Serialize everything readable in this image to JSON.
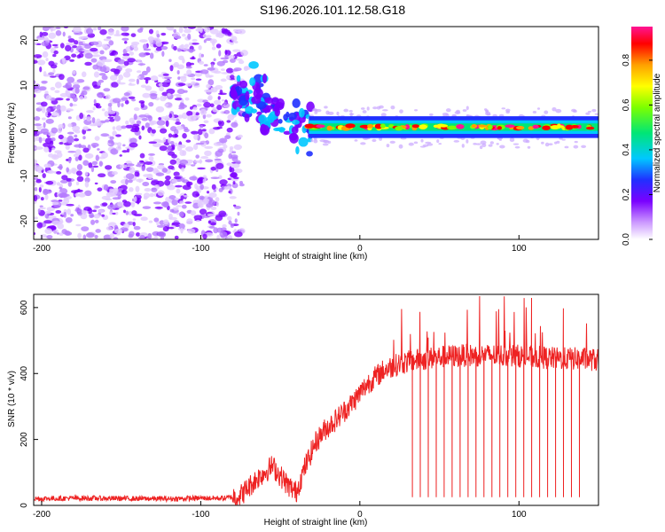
{
  "title": "S196.2026.101.12.58.G18",
  "colors": {
    "snr_line": "#ee2222",
    "axis": "#000000"
  },
  "chart_data": [
    {
      "type": "heatmap",
      "name": "spectrogram",
      "xlabel": "Height of straight line (km)",
      "ylabel": "Frequency (Hz)",
      "xlim": [
        -205,
        150
      ],
      "ylim": [
        -24,
        23
      ],
      "xticks": [
        -200,
        -100,
        0,
        100
      ],
      "xtick_labels": [
        "-200",
        "-100",
        "0",
        "100"
      ],
      "yticks": [
        -20,
        -10,
        0,
        10,
        20
      ],
      "ytick_labels": [
        "-20",
        "-10",
        "0",
        "10",
        "20"
      ],
      "colorbar": {
        "label": "Normalized spectral amplitude",
        "range": [
          0,
          0.95
        ],
        "ticks": [
          0,
          0.2,
          0.4,
          0.6,
          0.8
        ],
        "tick_labels": [
          "0.0",
          "0.2",
          "0.4",
          "0.6",
          "0.8"
        ],
        "colormap": [
          "#ffffff",
          "#cc99ff",
          "#7a00ff",
          "#2030ff",
          "#00c8ff",
          "#00e676",
          "#7cff00",
          "#ffff00",
          "#ffa000",
          "#ff0000",
          "#ff1493"
        ]
      },
      "features": {
        "noise_region_x": [
          -205,
          -78
        ],
        "transition_region_x": [
          -80,
          -30
        ],
        "signal_band_x": [
          -32,
          150
        ],
        "signal_band_center_hz": 0.8,
        "signal_band_halfwidth_hz": 1.5
      }
    },
    {
      "type": "line",
      "name": "snr",
      "xlabel": "Height of straight line (km)",
      "ylabel": "SNR (10 * v/v)",
      "xlim": [
        -205,
        150
      ],
      "ylim": [
        0,
        640
      ],
      "xticks": [
        -200,
        -100,
        0,
        100
      ],
      "xtick_labels": [
        "-200",
        "-100",
        "0",
        "100"
      ],
      "yticks": [
        0,
        200,
        400,
        600
      ],
      "ytick_labels": [
        "0",
        "200",
        "400",
        "600"
      ],
      "series": [
        {
          "name": "SNR",
          "x": [
            -205,
            -180,
            -150,
            -120,
            -100,
            -85,
            -75,
            -65,
            -55,
            -45,
            -40,
            -35,
            -28,
            -22,
            -15,
            -5,
            5,
            15,
            25,
            35,
            50,
            65,
            80,
            95,
            110,
            125,
            140,
            150
          ],
          "y": [
            20,
            22,
            21,
            20,
            22,
            22,
            30,
            80,
            120,
            60,
            40,
            110,
            190,
            230,
            260,
            310,
            370,
            410,
            430,
            440,
            450,
            455,
            455,
            455,
            450,
            445,
            445,
            440
          ]
        }
      ],
      "dropouts_x": [
        33,
        38,
        43,
        48,
        53,
        58,
        63,
        68,
        73,
        78,
        83,
        88,
        93,
        98,
        103,
        108,
        113,
        118,
        123,
        128,
        133,
        138
      ]
    }
  ]
}
